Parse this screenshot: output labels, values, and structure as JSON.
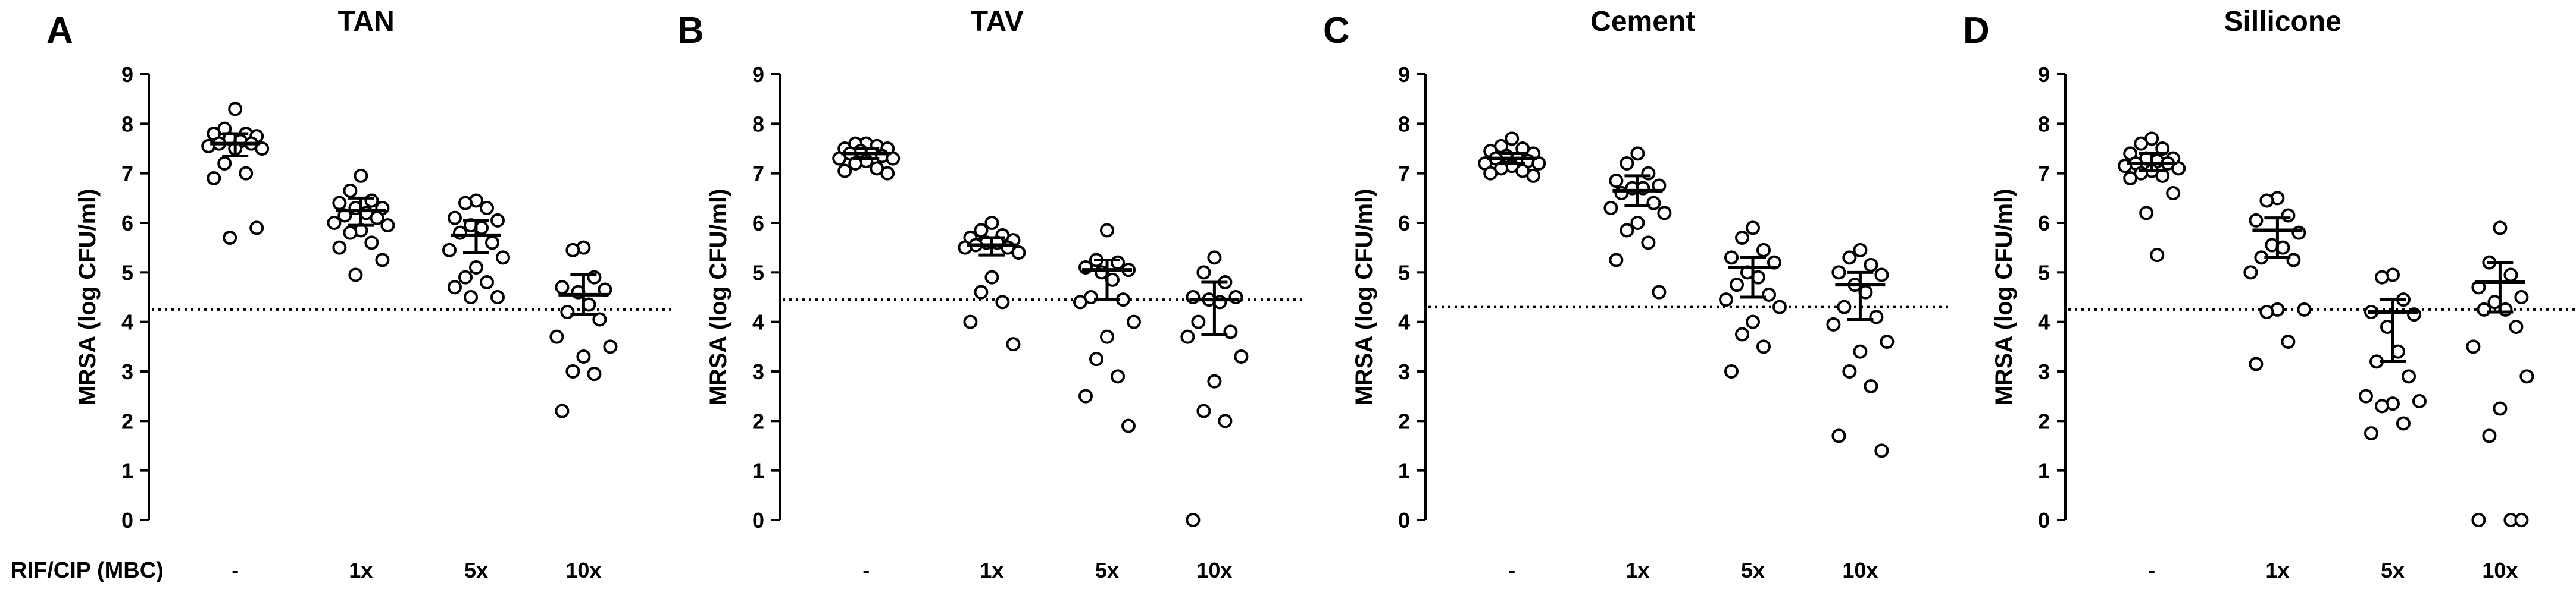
{
  "figure": {
    "row_label": "RIF/CIP (MBC)"
  },
  "chart_data": [
    {
      "type": "scatter",
      "panel": "A",
      "title": "TAN",
      "xlabel": "",
      "ylabel": "MRSA (log CFU/ml)",
      "ylim": [
        0,
        9
      ],
      "yticks": [
        0,
        1,
        2,
        3,
        4,
        5,
        6,
        7,
        8,
        9
      ],
      "categories": [
        "-",
        "1x",
        "5x",
        "10x"
      ],
      "threshold": 4.25,
      "groups": [
        {
          "category": "-",
          "mean": 7.6,
          "error_low": 7.35,
          "error_high": 7.8,
          "values": [
            8.3,
            7.9,
            7.8,
            7.8,
            7.75,
            7.7,
            7.65,
            7.6,
            7.6,
            7.55,
            7.5,
            7.5,
            7.2,
            7.0,
            6.9,
            5.9,
            5.7
          ]
        },
        {
          "category": "1x",
          "mean": 6.25,
          "error_low": 5.95,
          "error_high": 6.5,
          "values": [
            6.95,
            6.65,
            6.45,
            6.4,
            6.3,
            6.3,
            6.2,
            6.15,
            6.1,
            6.0,
            5.95,
            5.85,
            5.8,
            5.6,
            5.5,
            5.25,
            4.95
          ]
        },
        {
          "category": "5x",
          "mean": 5.75,
          "error_low": 5.4,
          "error_high": 6.05,
          "values": [
            6.45,
            6.4,
            6.3,
            6.1,
            6.05,
            5.95,
            5.9,
            5.8,
            5.6,
            5.45,
            5.3,
            5.1,
            4.9,
            4.8,
            4.7,
            4.5,
            4.5
          ]
        },
        {
          "category": "10x",
          "mean": 4.55,
          "error_low": 4.15,
          "error_high": 4.95,
          "values": [
            5.5,
            5.45,
            4.9,
            4.7,
            4.65,
            4.6,
            4.35,
            4.2,
            4.05,
            3.7,
            3.5,
            3.3,
            3.0,
            2.95,
            2.2
          ]
        }
      ]
    },
    {
      "type": "scatter",
      "panel": "B",
      "title": "TAV",
      "xlabel": "",
      "ylabel": "MRSA (log CFU/ml)",
      "ylim": [
        0,
        9
      ],
      "yticks": [
        0,
        1,
        2,
        3,
        4,
        5,
        6,
        7,
        8,
        9
      ],
      "categories": [
        "-",
        "1x",
        "5x",
        "10x"
      ],
      "threshold": 4.45,
      "groups": [
        {
          "category": "-",
          "mean": 7.4,
          "error_low": 7.3,
          "error_high": 7.5,
          "values": [
            7.6,
            7.6,
            7.55,
            7.5,
            7.5,
            7.45,
            7.4,
            7.4,
            7.35,
            7.3,
            7.3,
            7.25,
            7.2,
            7.1,
            7.05,
            7.0
          ]
        },
        {
          "category": "1x",
          "mean": 5.55,
          "error_low": 5.35,
          "error_high": 5.7,
          "values": [
            6.0,
            5.85,
            5.75,
            5.7,
            5.65,
            5.6,
            5.6,
            5.55,
            5.5,
            5.5,
            5.4,
            4.9,
            4.6,
            4.4,
            4.0,
            3.55
          ]
        },
        {
          "category": "5x",
          "mean": 5.05,
          "error_low": 4.45,
          "error_high": 5.25,
          "values": [
            5.85,
            5.25,
            5.2,
            5.1,
            5.05,
            5.0,
            4.85,
            4.5,
            4.45,
            4.4,
            4.0,
            3.7,
            3.25,
            2.9,
            2.5,
            1.9
          ]
        },
        {
          "category": "10x",
          "mean": 4.45,
          "error_low": 3.75,
          "error_high": 4.8,
          "values": [
            5.3,
            5.0,
            4.8,
            4.5,
            4.5,
            4.45,
            4.4,
            4.0,
            3.8,
            3.7,
            3.3,
            2.8,
            2.2,
            2.0,
            0.0
          ]
        }
      ]
    },
    {
      "type": "scatter",
      "panel": "C",
      "title": "Cement",
      "xlabel": "",
      "ylabel": "MRSA (log CFU/ml)",
      "ylim": [
        0,
        9
      ],
      "yticks": [
        0,
        1,
        2,
        3,
        4,
        5,
        6,
        7,
        8,
        9
      ],
      "categories": [
        "-",
        "1x",
        "5x",
        "10x"
      ],
      "threshold": 4.3,
      "groups": [
        {
          "category": "-",
          "mean": 7.3,
          "error_low": 7.2,
          "error_high": 7.4,
          "values": [
            7.7,
            7.55,
            7.5,
            7.45,
            7.4,
            7.35,
            7.3,
            7.3,
            7.25,
            7.2,
            7.2,
            7.15,
            7.1,
            7.05,
            7.0,
            6.95
          ]
        },
        {
          "category": "1x",
          "mean": 6.65,
          "error_low": 6.35,
          "error_high": 6.95,
          "values": [
            7.4,
            7.2,
            7.0,
            6.85,
            6.75,
            6.7,
            6.7,
            6.6,
            6.4,
            6.3,
            6.2,
            6.0,
            5.85,
            5.6,
            5.25,
            4.6
          ]
        },
        {
          "category": "5x",
          "mean": 5.1,
          "error_low": 4.5,
          "error_high": 5.3,
          "values": [
            5.9,
            5.7,
            5.45,
            5.3,
            5.2,
            5.0,
            4.9,
            4.75,
            4.55,
            4.45,
            4.3,
            4.0,
            3.75,
            3.5,
            3.0
          ]
        },
        {
          "category": "10x",
          "mean": 4.75,
          "error_low": 4.05,
          "error_high": 5.0,
          "values": [
            5.45,
            5.3,
            5.15,
            5.0,
            4.95,
            4.75,
            4.6,
            4.3,
            4.1,
            3.95,
            3.6,
            3.4,
            3.0,
            2.7,
            1.7,
            1.4
          ]
        }
      ]
    },
    {
      "type": "scatter",
      "panel": "D",
      "title": "Sillicone",
      "xlabel": "",
      "ylabel": "MRSA (log CFU/ml)",
      "ylim": [
        0,
        9
      ],
      "yticks": [
        0,
        1,
        2,
        3,
        4,
        5,
        6,
        7,
        8,
        9
      ],
      "categories": [
        "-",
        "1x",
        "5x",
        "10x"
      ],
      "threshold": 4.25,
      "groups": [
        {
          "category": "-",
          "mean": 7.2,
          "error_low": 7.05,
          "error_high": 7.4,
          "values": [
            7.7,
            7.6,
            7.5,
            7.4,
            7.3,
            7.3,
            7.25,
            7.2,
            7.2,
            7.15,
            7.1,
            7.05,
            7.0,
            6.95,
            6.9,
            6.6,
            6.2,
            5.35
          ]
        },
        {
          "category": "1x",
          "mean": 5.85,
          "error_low": 5.3,
          "error_high": 6.1,
          "values": [
            6.5,
            6.45,
            6.15,
            6.05,
            5.8,
            5.55,
            5.5,
            5.3,
            5.25,
            5.0,
            4.25,
            4.25,
            4.2,
            3.6,
            3.15
          ]
        },
        {
          "category": "5x",
          "mean": 4.2,
          "error_low": 3.2,
          "error_high": 4.45,
          "values": [
            4.95,
            4.9,
            4.45,
            4.2,
            4.15,
            3.9,
            3.4,
            3.2,
            2.9,
            2.5,
            2.4,
            2.35,
            2.3,
            1.95,
            1.75
          ]
        },
        {
          "category": "10x",
          "mean": 4.8,
          "error_low": 4.2,
          "error_high": 5.2,
          "values": [
            5.9,
            5.2,
            4.95,
            4.7,
            4.5,
            4.4,
            4.25,
            4.25,
            3.9,
            3.5,
            2.9,
            2.25,
            1.7,
            0.0,
            0.0,
            0.0
          ]
        }
      ]
    }
  ]
}
